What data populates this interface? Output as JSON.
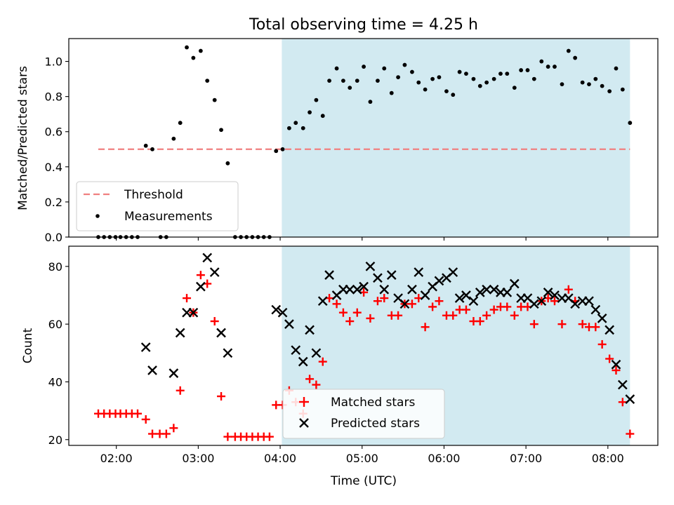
{
  "title": "Total observing time = 4.25 h",
  "colors": {
    "shade": "#add8e6",
    "threshold": "#f08080",
    "measurements": "#000000",
    "matched": "#ff0000",
    "predicted": "#000000"
  },
  "x_axis": {
    "label": "Time (UTC)",
    "unit": "hours UTC",
    "range": [
      1.42,
      8.61
    ],
    "ticks": [
      {
        "v": 2,
        "label": "02:00"
      },
      {
        "v": 3,
        "label": "03:00"
      },
      {
        "v": 4,
        "label": "04:00"
      },
      {
        "v": 5,
        "label": "05:00"
      },
      {
        "v": 6,
        "label": "06:00"
      },
      {
        "v": 7,
        "label": "07:00"
      },
      {
        "v": 8,
        "label": "08:00"
      }
    ]
  },
  "chart_data": [
    {
      "type": "scatter",
      "ylabel": "Matched/Predicted stars",
      "ylim": [
        0,
        1.13
      ],
      "yticks": [
        0.0,
        0.2,
        0.4,
        0.6,
        0.8,
        1.0
      ],
      "ytick_labels": [
        "0.0",
        "0.2",
        "0.4",
        "0.6",
        "0.8",
        "1.0"
      ],
      "shaded_interval": [
        4.02,
        8.27
      ],
      "legend": {
        "location": "lower-left",
        "entries": [
          "Threshold",
          "Measurements"
        ]
      },
      "threshold": {
        "name": "Threshold",
        "value": 0.5,
        "x_range": [
          1.78,
          8.27
        ]
      },
      "series": [
        {
          "name": "Measurements",
          "points": [
            [
              1.78,
              0.0
            ],
            [
              1.85,
              0.0
            ],
            [
              1.92,
              0.0
            ],
            [
              1.99,
              0.0
            ],
            [
              2.05,
              0.0
            ],
            [
              2.12,
              0.0
            ],
            [
              2.19,
              0.0
            ],
            [
              2.26,
              0.0
            ],
            [
              2.36,
              0.52
            ],
            [
              2.44,
              0.5
            ],
            [
              2.54,
              0.0
            ],
            [
              2.61,
              0.0
            ],
            [
              2.7,
              0.56
            ],
            [
              2.78,
              0.65
            ],
            [
              2.86,
              1.08
            ],
            [
              2.94,
              1.02
            ],
            [
              3.03,
              1.06
            ],
            [
              3.11,
              0.89
            ],
            [
              3.2,
              0.78
            ],
            [
              3.28,
              0.61
            ],
            [
              3.36,
              0.42
            ],
            [
              3.45,
              0.0
            ],
            [
              3.52,
              0.0
            ],
            [
              3.59,
              0.0
            ],
            [
              3.66,
              0.0
            ],
            [
              3.73,
              0.0
            ],
            [
              3.8,
              0.0
            ],
            [
              3.87,
              0.0
            ],
            [
              3.95,
              0.49
            ],
            [
              4.03,
              0.5
            ],
            [
              4.11,
              0.62
            ],
            [
              4.19,
              0.65
            ],
            [
              4.28,
              0.62
            ],
            [
              4.36,
              0.71
            ],
            [
              4.44,
              0.78
            ],
            [
              4.52,
              0.69
            ],
            [
              4.6,
              0.89
            ],
            [
              4.69,
              0.96
            ],
            [
              4.77,
              0.89
            ],
            [
              4.85,
              0.85
            ],
            [
              4.94,
              0.89
            ],
            [
              5.02,
              0.97
            ],
            [
              5.1,
              0.77
            ],
            [
              5.19,
              0.89
            ],
            [
              5.27,
              0.96
            ],
            [
              5.36,
              0.82
            ],
            [
              5.44,
              0.91
            ],
            [
              5.52,
              0.98
            ],
            [
              5.61,
              0.94
            ],
            [
              5.69,
              0.88
            ],
            [
              5.77,
              0.84
            ],
            [
              5.86,
              0.9
            ],
            [
              5.94,
              0.91
            ],
            [
              6.03,
              0.83
            ],
            [
              6.11,
              0.81
            ],
            [
              6.19,
              0.94
            ],
            [
              6.27,
              0.93
            ],
            [
              6.36,
              0.9
            ],
            [
              6.44,
              0.86
            ],
            [
              6.52,
              0.88
            ],
            [
              6.61,
              0.9
            ],
            [
              6.69,
              0.93
            ],
            [
              6.77,
              0.93
            ],
            [
              6.86,
              0.85
            ],
            [
              6.94,
              0.95
            ],
            [
              7.02,
              0.95
            ],
            [
              7.1,
              0.9
            ],
            [
              7.19,
              1.0
            ],
            [
              7.27,
              0.97
            ],
            [
              7.35,
              0.97
            ],
            [
              7.44,
              0.87
            ],
            [
              7.52,
              1.06
            ],
            [
              7.6,
              1.02
            ],
            [
              7.69,
              0.88
            ],
            [
              7.77,
              0.87
            ],
            [
              7.85,
              0.9
            ],
            [
              7.93,
              0.86
            ],
            [
              8.02,
              0.83
            ],
            [
              8.1,
              0.96
            ],
            [
              8.18,
              0.84
            ],
            [
              8.27,
              0.65
            ]
          ]
        }
      ]
    },
    {
      "type": "scatter",
      "ylabel": "Count",
      "xlabel": "Time (UTC)",
      "ylim": [
        18,
        87
      ],
      "yticks": [
        20,
        40,
        60,
        80
      ],
      "ytick_labels": [
        "20",
        "40",
        "60",
        "80"
      ],
      "shaded_interval": [
        4.02,
        8.27
      ],
      "legend": {
        "location": "lower-center",
        "entries": [
          "Matched stars",
          "Predicted stars"
        ]
      },
      "series": [
        {
          "name": "Matched stars",
          "marker": "plus",
          "points": [
            [
              1.78,
              29
            ],
            [
              1.85,
              29
            ],
            [
              1.92,
              29
            ],
            [
              1.99,
              29
            ],
            [
              2.05,
              29
            ],
            [
              2.12,
              29
            ],
            [
              2.19,
              29
            ],
            [
              2.26,
              29
            ],
            [
              2.36,
              27
            ],
            [
              2.44,
              22
            ],
            [
              2.53,
              22
            ],
            [
              2.61,
              22
            ],
            [
              2.7,
              24
            ],
            [
              2.78,
              37
            ],
            [
              2.86,
              69
            ],
            [
              2.94,
              64
            ],
            [
              3.03,
              77
            ],
            [
              3.11,
              74
            ],
            [
              3.2,
              61
            ],
            [
              3.28,
              35
            ],
            [
              3.36,
              21
            ],
            [
              3.45,
              21
            ],
            [
              3.52,
              21
            ],
            [
              3.59,
              21
            ],
            [
              3.66,
              21
            ],
            [
              3.73,
              21
            ],
            [
              3.8,
              21
            ],
            [
              3.87,
              21
            ],
            [
              3.95,
              32
            ],
            [
              4.03,
              32
            ],
            [
              4.11,
              37
            ],
            [
              4.19,
              33
            ],
            [
              4.28,
              29
            ],
            [
              4.36,
              41
            ],
            [
              4.44,
              39
            ],
            [
              4.52,
              47
            ],
            [
              4.6,
              69
            ],
            [
              4.69,
              67
            ],
            [
              4.77,
              64
            ],
            [
              4.85,
              61
            ],
            [
              4.94,
              64
            ],
            [
              5.02,
              71
            ],
            [
              5.1,
              62
            ],
            [
              5.19,
              68
            ],
            [
              5.27,
              69
            ],
            [
              5.36,
              63
            ],
            [
              5.44,
              63
            ],
            [
              5.52,
              67
            ],
            [
              5.61,
              67
            ],
            [
              5.69,
              69
            ],
            [
              5.77,
              59
            ],
            [
              5.86,
              66
            ],
            [
              5.94,
              68
            ],
            [
              6.03,
              63
            ],
            [
              6.11,
              63
            ],
            [
              6.19,
              65
            ],
            [
              6.27,
              65
            ],
            [
              6.36,
              61
            ],
            [
              6.44,
              61
            ],
            [
              6.52,
              63
            ],
            [
              6.61,
              65
            ],
            [
              6.69,
              66
            ],
            [
              6.77,
              66
            ],
            [
              6.86,
              63
            ],
            [
              6.94,
              66
            ],
            [
              7.02,
              66
            ],
            [
              7.1,
              60
            ],
            [
              7.19,
              68
            ],
            [
              7.27,
              69
            ],
            [
              7.35,
              68
            ],
            [
              7.44,
              60
            ],
            [
              7.52,
              72
            ],
            [
              7.6,
              68
            ],
            [
              7.69,
              60
            ],
            [
              7.77,
              59
            ],
            [
              7.85,
              59
            ],
            [
              7.93,
              53
            ],
            [
              8.02,
              48
            ],
            [
              8.1,
              44
            ],
            [
              8.18,
              33
            ],
            [
              8.27,
              22
            ]
          ]
        },
        {
          "name": "Predicted stars",
          "marker": "x",
          "points": [
            [
              2.36,
              52
            ],
            [
              2.44,
              44
            ],
            [
              2.7,
              43
            ],
            [
              2.78,
              57
            ],
            [
              2.86,
              64
            ],
            [
              2.94,
              64
            ],
            [
              3.03,
              73
            ],
            [
              3.11,
              83
            ],
            [
              3.2,
              78
            ],
            [
              3.28,
              57
            ],
            [
              3.36,
              50
            ],
            [
              3.95,
              65
            ],
            [
              4.03,
              64
            ],
            [
              4.11,
              60
            ],
            [
              4.19,
              51
            ],
            [
              4.28,
              47
            ],
            [
              4.36,
              58
            ],
            [
              4.44,
              50
            ],
            [
              4.52,
              68
            ],
            [
              4.6,
              77
            ],
            [
              4.69,
              70
            ],
            [
              4.77,
              72
            ],
            [
              4.85,
              72
            ],
            [
              4.94,
              72
            ],
            [
              5.02,
              73
            ],
            [
              5.1,
              80
            ],
            [
              5.19,
              76
            ],
            [
              5.27,
              72
            ],
            [
              5.36,
              77
            ],
            [
              5.44,
              69
            ],
            [
              5.52,
              67
            ],
            [
              5.61,
              72
            ],
            [
              5.69,
              78
            ],
            [
              5.77,
              70
            ],
            [
              5.86,
              73
            ],
            [
              5.94,
              75
            ],
            [
              6.03,
              76
            ],
            [
              6.11,
              78
            ],
            [
              6.19,
              69
            ],
            [
              6.27,
              70
            ],
            [
              6.36,
              68
            ],
            [
              6.44,
              71
            ],
            [
              6.52,
              72
            ],
            [
              6.61,
              72
            ],
            [
              6.69,
              71
            ],
            [
              6.77,
              71
            ],
            [
              6.86,
              74
            ],
            [
              6.94,
              69
            ],
            [
              7.02,
              69
            ],
            [
              7.1,
              67
            ],
            [
              7.19,
              68
            ],
            [
              7.27,
              71
            ],
            [
              7.35,
              70
            ],
            [
              7.44,
              69
            ],
            [
              7.52,
              69
            ],
            [
              7.6,
              67
            ],
            [
              7.69,
              68
            ],
            [
              7.77,
              68
            ],
            [
              7.85,
              65
            ],
            [
              7.93,
              62
            ],
            [
              8.02,
              58
            ],
            [
              8.1,
              46
            ],
            [
              8.18,
              39
            ],
            [
              8.27,
              34
            ]
          ]
        }
      ]
    }
  ]
}
